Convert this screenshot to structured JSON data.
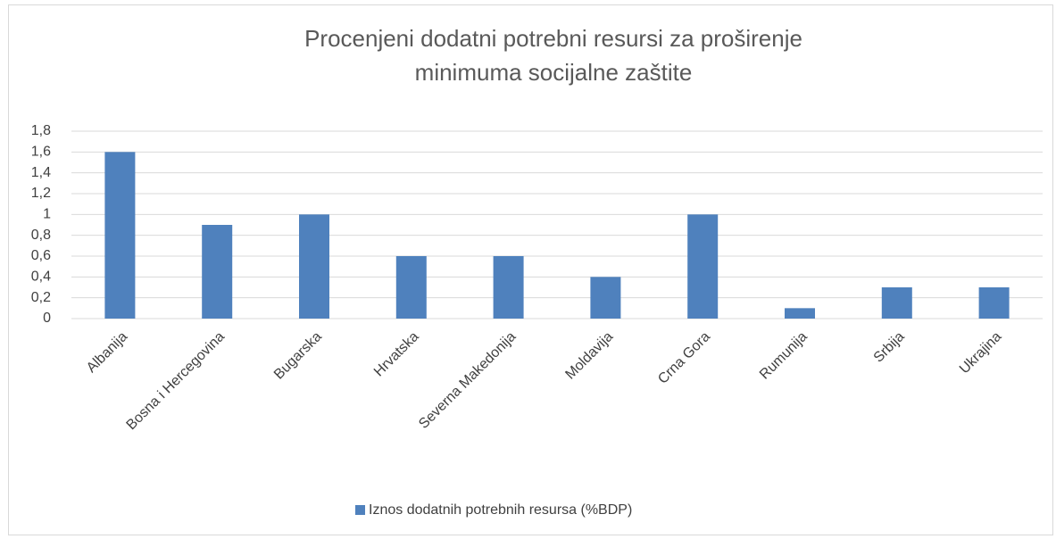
{
  "chart_data": {
    "type": "bar",
    "title": [
      "Procenjeni dodatni potrebni resursi  za proširenje",
      "minimuma socijalne zaštite"
    ],
    "categories": [
      "Albanija",
      "Bosna i Hercegovina",
      "Bugarska",
      "Hrvatska",
      "Severna Makedonija",
      "Moldavija",
      "Crna Gora",
      "Rumunija",
      "Srbija",
      "Ukrajina"
    ],
    "series": [
      {
        "name": "Iznos dodatnih potrebnih resursa (%BDP)",
        "color": "#4f81bd",
        "values": [
          1.6,
          0.9,
          1.0,
          0.6,
          0.6,
          0.4,
          1.0,
          0.1,
          0.3,
          0.3
        ]
      }
    ],
    "ylim": [
      0,
      1.8
    ],
    "yticks": [
      0,
      {
        "value": 0.2,
        "label": "0,2"
      },
      {
        "value": 0.4,
        "label": "0,4"
      },
      {
        "value": 0.6,
        "label": "0,6"
      },
      {
        "value": 0.8,
        "label": "0,8"
      },
      1,
      {
        "value": 1.2,
        "label": "1,2"
      },
      {
        "value": 1.4,
        "label": "1,4"
      },
      {
        "value": 1.6,
        "label": "1,6"
      },
      {
        "value": 1.8,
        "label": "1,8"
      }
    ],
    "grid": true,
    "legend": "bottom"
  }
}
